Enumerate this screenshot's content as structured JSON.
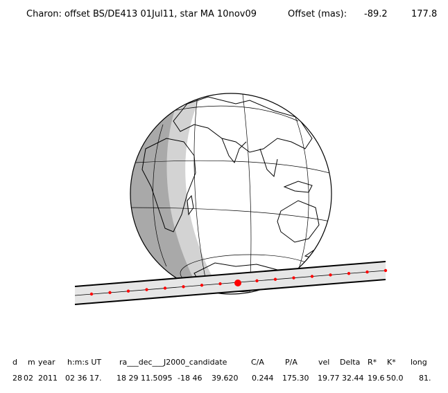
{
  "title": {
    "label": "Charon: offset BS/DE413 01Jul11, star MA 10nov09",
    "offset_label": "Offset (mas):",
    "offset_ra": "-89.2",
    "offset_dec": "177.8"
  },
  "colors": {
    "background": "#ffffff",
    "globe_day": "#ffffff",
    "twilight": "#d3d3d3",
    "night": "#a9a9a9",
    "lines": "#000000",
    "track_points": "#ff0000"
  },
  "diagram": {
    "type": "occultation-map",
    "track_dot_count": 17,
    "closest_approach_marker": "large red dot"
  },
  "table": {
    "headers": [
      "d",
      "m",
      "year",
      "h:m:s UT",
      "ra___dec___J2000_candidate",
      "C/A",
      "P/A",
      "vel",
      "Delta",
      "R*",
      "K*",
      "long"
    ],
    "row": [
      "28",
      "02",
      "2011",
      "02 36 17.",
      "18 29 11.5095",
      "-18 46",
      "39.620",
      "0.244",
      "175.30",
      "19.77",
      "32.44",
      "19.6",
      "50.0",
      "81."
    ]
  }
}
